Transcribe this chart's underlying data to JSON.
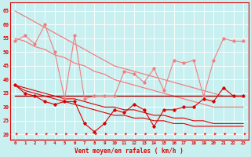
{
  "x": [
    0,
    1,
    2,
    3,
    4,
    5,
    6,
    7,
    8,
    9,
    10,
    11,
    12,
    13,
    14,
    15,
    16,
    17,
    18,
    19,
    20,
    21,
    22,
    23
  ],
  "line_pink_jagged": [
    54,
    56,
    53,
    60,
    50,
    33,
    56,
    33,
    34,
    34,
    34,
    43,
    42,
    39,
    44,
    36,
    47,
    46,
    47,
    34,
    47,
    55,
    54,
    54
  ],
  "line_pink_top": [
    65,
    63,
    61,
    59,
    57,
    55,
    53,
    51,
    49,
    47,
    45,
    44,
    43,
    42,
    41,
    40,
    39,
    38,
    37,
    36,
    35,
    34,
    34,
    34
  ],
  "line_pink_mid": [
    55,
    54,
    52,
    51,
    49,
    48,
    46,
    45,
    43,
    42,
    40,
    39,
    38,
    37,
    36,
    35,
    34,
    33,
    32,
    31,
    30,
    30,
    30,
    30
  ],
  "line_red_jagged": [
    38,
    35,
    34,
    32,
    31,
    32,
    32,
    24,
    21,
    24,
    29,
    28,
    31,
    29,
    23,
    29,
    29,
    30,
    30,
    33,
    32,
    37,
    34,
    34
  ],
  "line_red_flat": [
    34,
    34,
    34,
    34,
    34,
    34,
    34,
    34,
    34,
    34,
    34,
    34,
    34,
    34,
    34,
    34,
    34,
    34,
    34,
    34,
    34,
    34,
    34,
    34
  ],
  "line_red_top_slope": [
    38,
    37,
    36,
    35,
    34,
    33,
    33,
    32,
    31,
    30,
    30,
    29,
    29,
    28,
    27,
    27,
    26,
    26,
    25,
    25,
    24,
    24,
    24,
    24
  ],
  "line_red_bot_slope": [
    38,
    36,
    35,
    34,
    33,
    32,
    31,
    30,
    29,
    28,
    27,
    27,
    26,
    26,
    25,
    25,
    24,
    24,
    23,
    23,
    23,
    23,
    23,
    23
  ],
  "color_light_pink": "#f08080",
  "color_red": "#dd0000",
  "color_dark_red": "#aa0000",
  "bg_color": "#c8f0f0",
  "grid_color": "#b0d8d8",
  "xlabel": "Vent moyen/en rafales ( km/h )",
  "xlim": [
    -0.5,
    23.5
  ],
  "ylim": [
    18,
    68
  ],
  "yticks": [
    20,
    25,
    30,
    35,
    40,
    45,
    50,
    55,
    60,
    65
  ]
}
